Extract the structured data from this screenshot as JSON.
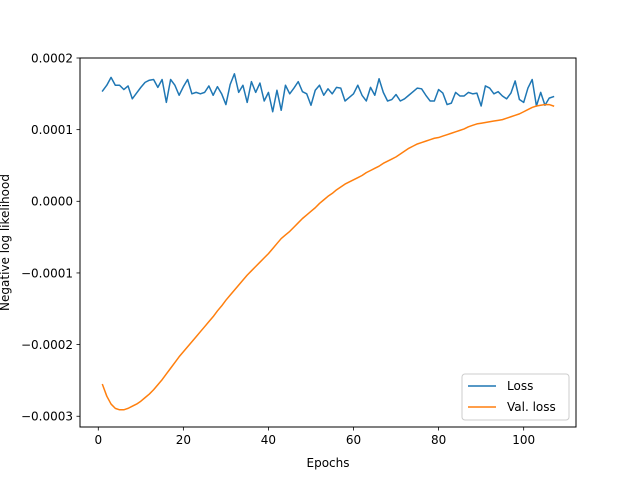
{
  "chart_data": {
    "type": "line",
    "title": "",
    "xlabel": "Epochs",
    "ylabel": "Negative log likelihood",
    "xlim": [
      -4.3,
      112.3
    ],
    "ylim": [
      -0.000315,
      0.0002
    ],
    "xticks": [
      0,
      20,
      40,
      60,
      80,
      100
    ],
    "xtick_labels": [
      "0",
      "20",
      "40",
      "60",
      "80",
      "100"
    ],
    "yticks": [
      -0.0003,
      -0.0002,
      -0.0001,
      0.0,
      0.0001,
      0.0002
    ],
    "ytick_labels": [
      "−0.0003",
      "−0.0002",
      "−0.0001",
      "0.0000",
      "0.0001",
      "0.0002"
    ],
    "grid": false,
    "legend_position": "lower-right",
    "series": [
      {
        "name": "Loss",
        "color": "#1f77b4",
        "x": [
          1,
          2,
          3,
          4,
          5,
          6,
          7,
          8,
          9,
          10,
          11,
          12,
          13,
          14,
          15,
          16,
          17,
          18,
          19,
          20,
          21,
          22,
          23,
          24,
          25,
          26,
          27,
          28,
          29,
          30,
          31,
          32,
          33,
          34,
          35,
          36,
          37,
          38,
          39,
          40,
          41,
          42,
          43,
          44,
          45,
          46,
          47,
          48,
          49,
          50,
          51,
          52,
          53,
          54,
          55,
          56,
          57,
          58,
          59,
          60,
          61,
          62,
          63,
          64,
          65,
          66,
          67,
          68,
          69,
          70,
          71,
          72,
          73,
          74,
          75,
          76,
          77,
          78,
          79,
          80,
          81,
          82,
          83,
          84,
          85,
          86,
          87,
          88,
          89,
          90,
          91,
          92,
          93,
          94,
          95,
          96,
          97,
          98,
          99,
          100,
          101,
          102,
          103,
          104,
          105,
          106,
          107
        ],
        "y": [
          0.000154,
          0.000162,
          0.000173,
          0.000162,
          0.000162,
          0.000156,
          0.000161,
          0.000143,
          0.000151,
          0.000159,
          0.000166,
          0.000169,
          0.00017,
          0.000159,
          0.00017,
          0.000138,
          0.00017,
          0.000162,
          0.000148,
          0.00016,
          0.00017,
          0.00015,
          0.000152,
          0.00015,
          0.000152,
          0.000161,
          0.000148,
          0.00016,
          0.00015,
          0.000135,
          0.000163,
          0.000178,
          0.000152,
          0.000162,
          0.000138,
          0.000167,
          0.000152,
          0.000165,
          0.00014,
          0.000152,
          0.000125,
          0.000155,
          0.000127,
          0.000162,
          0.00015,
          0.000158,
          0.000167,
          0.000153,
          0.00015,
          0.000134,
          0.000155,
          0.000162,
          0.000148,
          0.000157,
          0.00015,
          0.000159,
          0.000158,
          0.00014,
          0.000145,
          0.00015,
          0.000162,
          0.000148,
          0.00014,
          0.000159,
          0.000148,
          0.000171,
          0.000152,
          0.00014,
          0.000142,
          0.000149,
          0.00014,
          0.000143,
          0.000148,
          0.000153,
          0.000158,
          0.000157,
          0.000148,
          0.00014,
          0.00014,
          0.000156,
          0.000151,
          0.000135,
          0.000137,
          0.000152,
          0.000147,
          0.000147,
          0.000152,
          0.00015,
          0.000151,
          0.000133,
          0.000161,
          0.000158,
          0.00015,
          0.000153,
          0.000147,
          0.000143,
          0.000151,
          0.000168,
          0.000142,
          0.000138,
          0.000158,
          0.00017,
          0.000133,
          0.000152,
          0.000134,
          0.000144,
          0.000146
        ]
      },
      {
        "name": "Val. loss",
        "color": "#ff7f0e",
        "x": [
          1,
          2,
          3,
          4,
          5,
          6,
          7,
          8,
          9,
          10,
          11,
          12,
          13,
          14,
          15,
          16,
          17,
          18,
          19,
          20,
          21,
          22,
          23,
          24,
          25,
          26,
          27,
          28,
          29,
          30,
          31,
          32,
          33,
          34,
          35,
          36,
          37,
          38,
          39,
          40,
          41,
          42,
          43,
          44,
          45,
          46,
          47,
          48,
          49,
          50,
          51,
          52,
          53,
          54,
          55,
          56,
          57,
          58,
          59,
          60,
          61,
          62,
          63,
          64,
          65,
          66,
          67,
          68,
          69,
          70,
          71,
          72,
          73,
          74,
          75,
          76,
          77,
          78,
          79,
          80,
          81,
          82,
          83,
          84,
          85,
          86,
          87,
          88,
          89,
          90,
          91,
          92,
          93,
          94,
          95,
          96,
          97,
          98,
          99,
          100,
          101,
          102,
          103,
          104,
          105,
          106,
          107
        ],
        "y": [
          -0.000256,
          -0.000272,
          -0.000283,
          -0.000289,
          -0.000291,
          -0.000291,
          -0.000289,
          -0.000286,
          -0.000283,
          -0.000279,
          -0.000274,
          -0.000269,
          -0.000263,
          -0.000256,
          -0.000249,
          -0.000241,
          -0.000233,
          -0.000225,
          -0.000217,
          -0.00021,
          -0.000203,
          -0.000196,
          -0.000189,
          -0.000182,
          -0.000175,
          -0.000168,
          -0.000161,
          -0.000153,
          -0.000146,
          -0.000138,
          -0.000131,
          -0.000124,
          -0.000117,
          -0.00011,
          -0.000103,
          -9.7e-05,
          -9.1e-05,
          -8.5e-05,
          -7.9e-05,
          -7.3e-05,
          -6.6e-05,
          -5.9e-05,
          -5.2e-05,
          -4.7e-05,
          -4.2e-05,
          -3.6e-05,
          -3e-05,
          -2.4e-05,
          -1.9e-05,
          -1.4e-05,
          -9e-06,
          -3e-06,
          2e-06,
          7e-06,
          1.1e-05,
          1.6e-05,
          2e-05,
          2.4e-05,
          2.7e-05,
          3e-05,
          3.3e-05,
          3.6e-05,
          4e-05,
          4.3e-05,
          4.6e-05,
          4.9e-05,
          5.3e-05,
          5.6e-05,
          5.9e-05,
          6.2e-05,
          6.6e-05,
          7e-05,
          7.4e-05,
          7.7e-05,
          8e-05,
          8.2e-05,
          8.4e-05,
          8.6e-05,
          8.8e-05,
          8.9e-05,
          9.1e-05,
          9.3e-05,
          9.5e-05,
          9.7e-05,
          9.9e-05,
          0.000101,
          0.000104,
          0.000106,
          0.000108,
          0.000109,
          0.00011,
          0.000111,
          0.000112,
          0.000113,
          0.000114,
          0.000116,
          0.000118,
          0.00012,
          0.000122,
          0.000125,
          0.000128,
          0.000131,
          0.000133,
          0.000134,
          0.000135,
          0.000135,
          0.000133
        ]
      }
    ]
  }
}
